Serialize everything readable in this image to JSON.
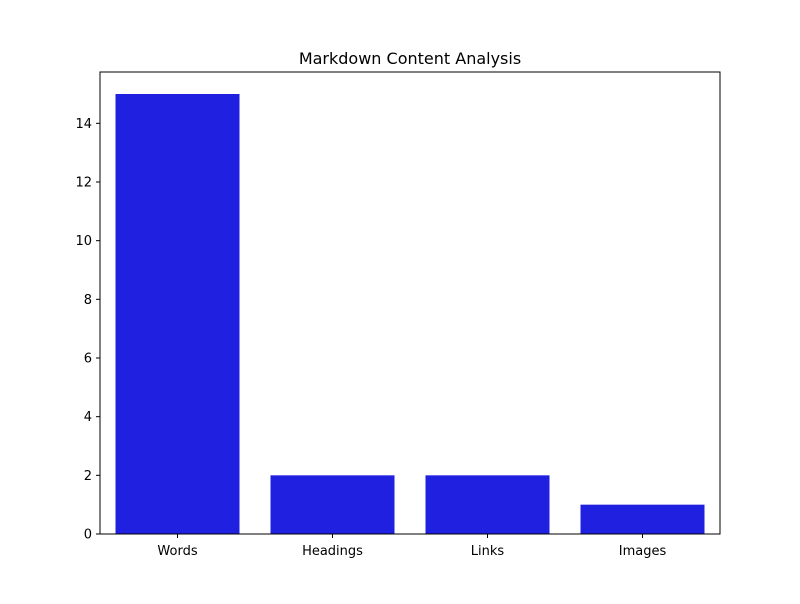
{
  "chart_data": {
    "type": "bar",
    "title": "Markdown Content Analysis",
    "xlabel": "",
    "ylabel": "",
    "categories": [
      "Words",
      "Headings",
      "Links",
      "Images"
    ],
    "values": [
      15,
      2,
      2,
      1
    ],
    "ylim": [
      0,
      15.75
    ],
    "yticks": [
      0,
      2,
      4,
      6,
      8,
      10,
      12,
      14
    ],
    "bar_color": "#2020e0",
    "grid": false,
    "legend": "none"
  }
}
